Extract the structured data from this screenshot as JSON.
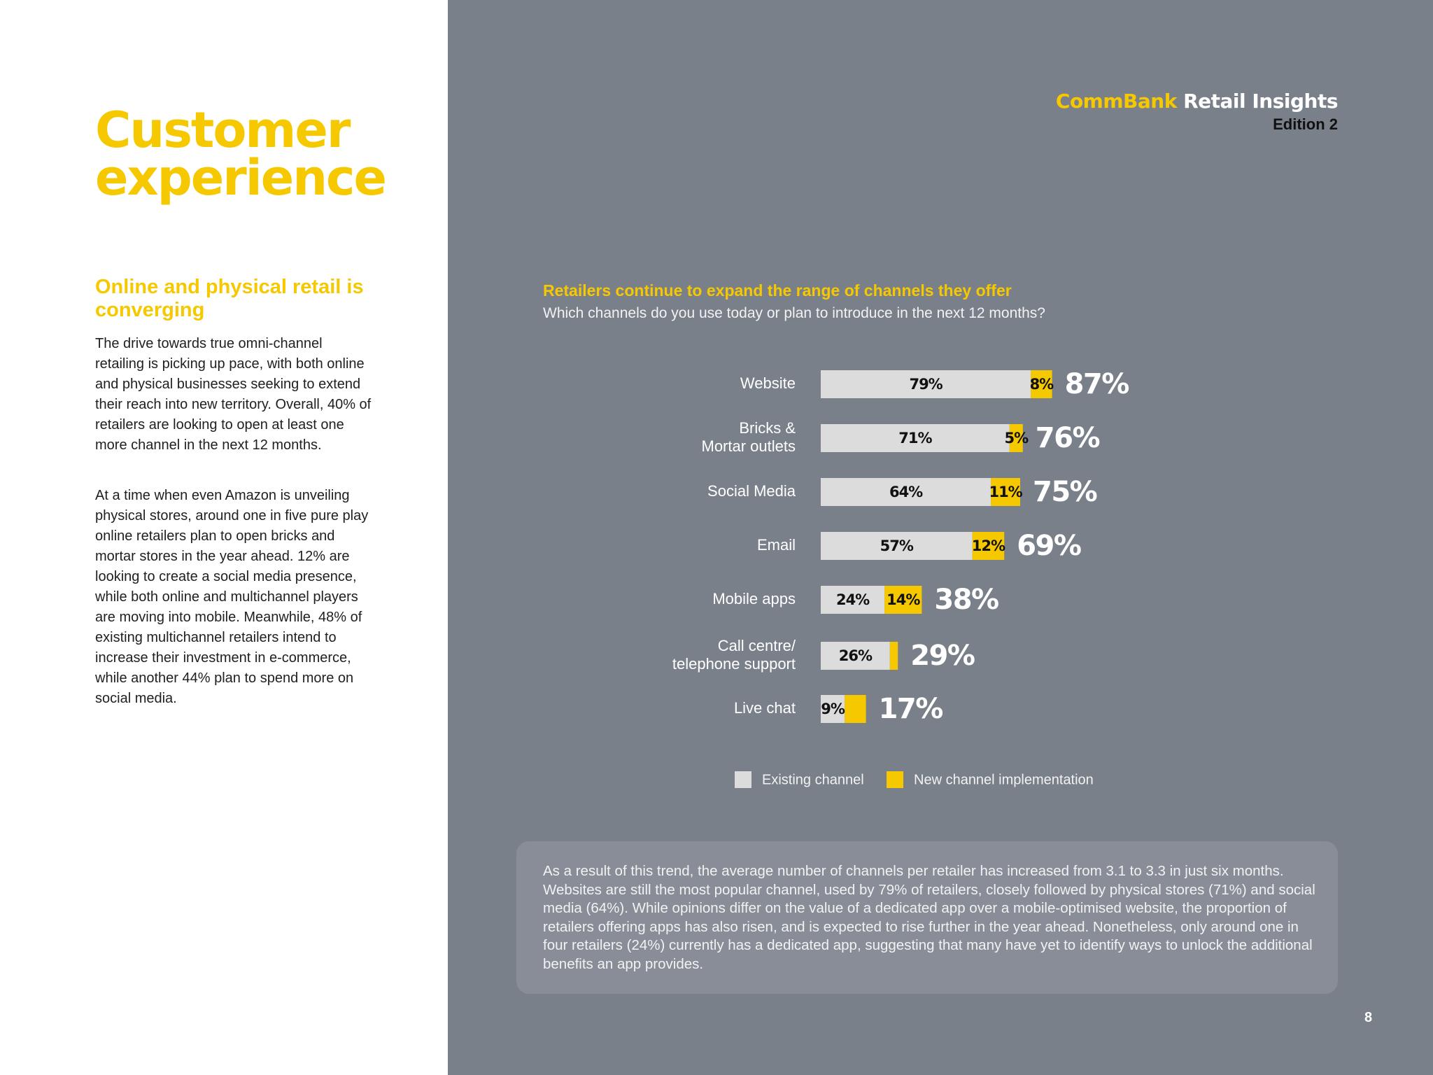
{
  "page": {
    "title": "Customer experience",
    "section_heading": "Online and physical retail is converging",
    "paragraphs": [
      "The drive towards true omni-channel retailing is picking up pace, with both online and physical businesses seeking to extend their reach into new territory. Overall, 40% of retailers are looking to open at least one more channel in the next 12 months.",
      "At a time when even Amazon is unveiling physical stores, around one in five pure play online retailers plan to open bricks and mortar stores in the year ahead. 12% are looking to create a social media presence, while both online and multichannel players are moving into mobile. Meanwhile, 48% of existing multichannel retailers intend to increase their investment in e-commerce, while another 44% plan to spend more on social media."
    ],
    "note": "As a result of this trend, the average number of channels per retailer has increased from 3.1 to 3.3 in just six months. Websites are still the most popular channel, used by 79% of retailers, closely followed by physical stores (71%) and social media (64%). While opinions differ on the value of a dedicated app over a mobile-optimised website, the proportion of retailers offering apps has also risen, and is expected to rise further in the year ahead. Nonetheless, only around one in four retailers (24%) currently has a dedicated app, suggesting that many have yet to identify ways to unlock the additional benefits an app provides.",
    "page_number": "8"
  },
  "brand": {
    "name": "CommBank",
    "product": "Retail Insights",
    "edition": "Edition 2"
  },
  "colors": {
    "accent": "#f6c800",
    "panel": "#7a808a",
    "existing": "#dcdcdc",
    "new": "#f6c800"
  },
  "chart_data": {
    "type": "bar",
    "stacked": true,
    "orientation": "horizontal",
    "title": "Retailers continue to expand the range of channels they offer",
    "subtitle": "Which channels do you use today or plan to introduce in the next 12 months?",
    "categories": [
      [
        "Website"
      ],
      [
        "Bricks &",
        "Mortar outlets"
      ],
      [
        "Social Media"
      ],
      [
        "Email"
      ],
      [
        "Mobile apps"
      ],
      [
        "Call centre/",
        "telephone support"
      ],
      [
        "Live chat"
      ]
    ],
    "series": [
      {
        "name": "Existing channel",
        "values": [
          79,
          71,
          64,
          57,
          24,
          26,
          9
        ],
        "labels": [
          "79%",
          "71%",
          "64%",
          "57%",
          "24%",
          "26%",
          "9%"
        ]
      },
      {
        "name": "New channel implementation",
        "values": [
          8,
          5,
          11,
          12,
          14,
          3,
          8
        ],
        "labels": [
          "8%",
          "5%",
          "11%",
          "12%",
          "14%",
          "",
          ""
        ]
      }
    ],
    "totals": [
      "87%",
      "76%",
      "75%",
      "69%",
      "38%",
      "29%",
      "17%"
    ],
    "xlim": [
      0,
      100
    ],
    "grid": false,
    "legend_position": "bottom"
  }
}
